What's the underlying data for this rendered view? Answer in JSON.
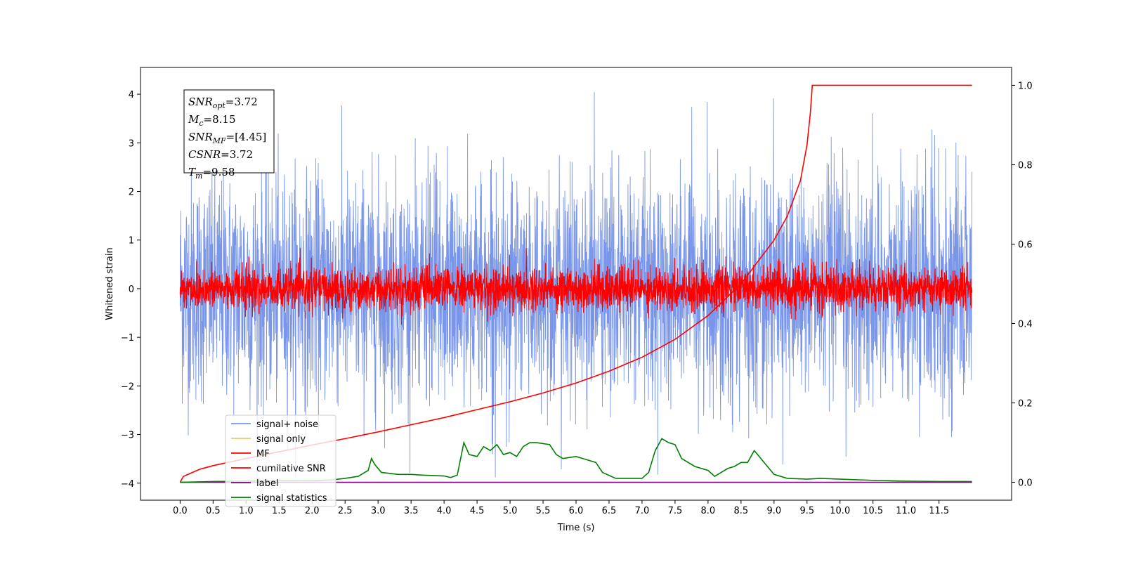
{
  "chart_data": {
    "type": "line",
    "xlabel": "Time (s)",
    "ylabel": "Whitened strain",
    "xlim": [
      -0.6,
      12.6
    ],
    "ylim": [
      -4.35,
      4.55
    ],
    "y2lim": [
      -0.045,
      1.045
    ],
    "xticks": [
      "0.0",
      "0.5",
      "1.0",
      "1.5",
      "2.0",
      "2.5",
      "3.0",
      "3.5",
      "4.0",
      "4.5",
      "5.0",
      "5.5",
      "6.0",
      "6.5",
      "7.0",
      "7.5",
      "8.0",
      "8.5",
      "9.0",
      "9.5",
      "10.0",
      "10.5",
      "11.0",
      "11.5"
    ],
    "yticks": [
      "−4",
      "−3",
      "−2",
      "−1",
      "0",
      "1",
      "2",
      "3",
      "4"
    ],
    "y2ticks": [
      "0.0",
      "0.2",
      "0.4",
      "0.6",
      "0.8",
      "1.0"
    ],
    "grid": false,
    "legend_position": "lower-left",
    "annotation": {
      "lines": [
        {
          "main": "SNR",
          "sub": "opt",
          "rest": "=3.72"
        },
        {
          "main": "M",
          "sub": "c",
          "rest": "=8.15"
        },
        {
          "main": "SNR",
          "sub": "MF",
          "rest": "=[4.45]"
        },
        {
          "main": "CSNR",
          "sub": "",
          "rest": "=3.72"
        },
        {
          "main": "T",
          "sub": "m",
          "rest": "=9.58"
        }
      ]
    },
    "series": [
      {
        "name": "signal+ noise",
        "color": "#4169e1",
        "axis": "left",
        "style": "noise",
        "t_start": 0.0,
        "t_end": 12.0,
        "amplitude": 1.15,
        "spike_max": 4.15
      },
      {
        "name": "signal only",
        "color": "#f4c56b",
        "axis": "left",
        "style": "flat",
        "t_start": 0.0,
        "t_end": 12.0,
        "value": 0.0
      },
      {
        "name": "MF",
        "color": "#ff0000",
        "axis": "left",
        "style": "noise",
        "t_start": 0.0,
        "t_end": 12.0,
        "amplitude": 0.22,
        "spike_max": 0.95
      },
      {
        "name": "cumilative SNR",
        "color": "#ff0000",
        "axis": "right",
        "x": [
          0.0,
          0.05,
          0.3,
          0.5,
          1.0,
          1.5,
          2.0,
          2.5,
          3.0,
          3.5,
          4.0,
          4.5,
          5.0,
          5.5,
          6.0,
          6.5,
          7.0,
          7.5,
          8.0,
          8.5,
          9.0,
          9.2,
          9.4,
          9.5,
          9.55,
          9.58,
          10.0,
          11.0,
          12.0
        ],
        "values": [
          0.0,
          0.015,
          0.033,
          0.042,
          0.06,
          0.077,
          0.094,
          0.11,
          0.127,
          0.145,
          0.163,
          0.183,
          0.203,
          0.225,
          0.25,
          0.28,
          0.315,
          0.36,
          0.42,
          0.5,
          0.61,
          0.67,
          0.76,
          0.85,
          0.93,
          1.0,
          1.0,
          1.0,
          1.0
        ]
      },
      {
        "name": "label",
        "color": "#800080",
        "axis": "right",
        "x": [
          0.0,
          12.0
        ],
        "values": [
          0.0,
          0.0
        ]
      },
      {
        "name": "signal statistics",
        "color": "#008000",
        "axis": "right",
        "x": [
          0.0,
          0.5,
          1.0,
          1.5,
          2.0,
          2.3,
          2.5,
          2.7,
          2.85,
          2.9,
          2.95,
          3.05,
          3.3,
          3.5,
          3.7,
          4.0,
          4.1,
          4.2,
          4.3,
          4.38,
          4.5,
          4.6,
          4.7,
          4.8,
          4.9,
          5.0,
          5.1,
          5.2,
          5.3,
          5.4,
          5.6,
          5.7,
          5.8,
          6.0,
          6.1,
          6.2,
          6.3,
          6.4,
          6.6,
          6.8,
          7.0,
          7.1,
          7.2,
          7.3,
          7.4,
          7.5,
          7.6,
          7.8,
          8.0,
          8.1,
          8.2,
          8.3,
          8.4,
          8.5,
          8.6,
          8.7,
          8.8,
          8.9,
          9.0,
          9.2,
          9.5,
          9.7,
          10.0,
          10.5,
          11.0,
          11.5,
          12.0
        ],
        "values": [
          0.0,
          0.002,
          0.003,
          0.004,
          0.004,
          0.006,
          0.01,
          0.015,
          0.03,
          0.06,
          0.045,
          0.025,
          0.02,
          0.02,
          0.018,
          0.016,
          0.012,
          0.018,
          0.1,
          0.07,
          0.065,
          0.09,
          0.08,
          0.095,
          0.07,
          0.075,
          0.065,
          0.09,
          0.1,
          0.1,
          0.095,
          0.07,
          0.06,
          0.065,
          0.06,
          0.055,
          0.05,
          0.025,
          0.01,
          0.01,
          0.01,
          0.025,
          0.08,
          0.11,
          0.1,
          0.095,
          0.06,
          0.04,
          0.03,
          0.015,
          0.025,
          0.035,
          0.04,
          0.05,
          0.05,
          0.08,
          0.06,
          0.04,
          0.02,
          0.01,
          0.008,
          0.01,
          0.008,
          0.005,
          0.003,
          0.002,
          0.002
        ]
      }
    ]
  }
}
